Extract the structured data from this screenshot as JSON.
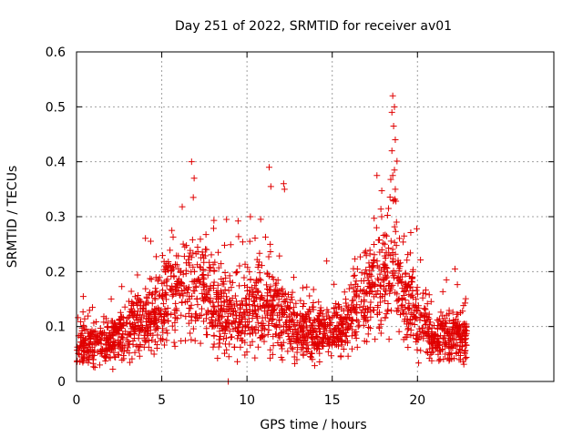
{
  "chart_data": {
    "type": "scatter",
    "title": "Day 251 of 2022, SRMTID for receiver av01",
    "xlabel": "GPS time / hours",
    "ylabel": "SRMTID / TECUs",
    "xlim": [
      0,
      28
    ],
    "ylim": [
      0,
      0.6
    ],
    "x_ticks": [
      0,
      5,
      10,
      15,
      20
    ],
    "y_ticks": [
      0,
      0.1,
      0.2,
      0.3,
      0.4,
      0.5,
      0.6
    ],
    "y_tick_labels": [
      "0",
      "0.1",
      "0.2",
      "0.3",
      "0.4",
      "0.5",
      "0.6"
    ],
    "grid": true,
    "marker": "+",
    "color": "#e00000",
    "series": [
      {
        "name": "av01",
        "seed": 251,
        "n_points": 2200,
        "x_range": [
          0,
          22.9
        ],
        "trend": [
          {
            "x": 0.0,
            "y": 0.075
          },
          {
            "x": 1.0,
            "y": 0.065
          },
          {
            "x": 2.0,
            "y": 0.07
          },
          {
            "x": 3.0,
            "y": 0.085
          },
          {
            "x": 4.0,
            "y": 0.11
          },
          {
            "x": 5.0,
            "y": 0.14
          },
          {
            "x": 6.0,
            "y": 0.17
          },
          {
            "x": 7.0,
            "y": 0.17
          },
          {
            "x": 8.0,
            "y": 0.15
          },
          {
            "x": 9.0,
            "y": 0.12
          },
          {
            "x": 10.0,
            "y": 0.12
          },
          {
            "x": 11.0,
            "y": 0.14
          },
          {
            "x": 12.0,
            "y": 0.12
          },
          {
            "x": 13.0,
            "y": 0.095
          },
          {
            "x": 14.0,
            "y": 0.085
          },
          {
            "x": 15.0,
            "y": 0.09
          },
          {
            "x": 16.0,
            "y": 0.11
          },
          {
            "x": 17.0,
            "y": 0.15
          },
          {
            "x": 18.0,
            "y": 0.19
          },
          {
            "x": 18.6,
            "y": 0.21
          },
          {
            "x": 19.0,
            "y": 0.16
          },
          {
            "x": 20.0,
            "y": 0.12
          },
          {
            "x": 21.0,
            "y": 0.075
          },
          {
            "x": 22.9,
            "y": 0.08
          }
        ],
        "highlights": [
          {
            "x": 6.75,
            "y": 0.4
          },
          {
            "x": 6.9,
            "y": 0.37
          },
          {
            "x": 6.85,
            "y": 0.335
          },
          {
            "x": 6.2,
            "y": 0.318
          },
          {
            "x": 11.3,
            "y": 0.39
          },
          {
            "x": 11.4,
            "y": 0.355
          },
          {
            "x": 12.15,
            "y": 0.36
          },
          {
            "x": 12.2,
            "y": 0.35
          },
          {
            "x": 10.2,
            "y": 0.3
          },
          {
            "x": 8.8,
            "y": 0.295
          },
          {
            "x": 18.55,
            "y": 0.52
          },
          {
            "x": 18.65,
            "y": 0.5
          },
          {
            "x": 18.5,
            "y": 0.49
          },
          {
            "x": 18.6,
            "y": 0.465
          },
          {
            "x": 18.7,
            "y": 0.44
          },
          {
            "x": 18.5,
            "y": 0.42
          },
          {
            "x": 18.65,
            "y": 0.385
          },
          {
            "x": 18.55,
            "y": 0.375
          },
          {
            "x": 18.7,
            "y": 0.35
          },
          {
            "x": 18.6,
            "y": 0.33
          },
          {
            "x": 18.3,
            "y": 0.315
          },
          {
            "x": 17.9,
            "y": 0.3
          },
          {
            "x": 17.6,
            "y": 0.28
          },
          {
            "x": 8.9,
            "y": 0.0
          },
          {
            "x": 22.2,
            "y": 0.205
          },
          {
            "x": 21.7,
            "y": 0.185
          }
        ]
      }
    ]
  }
}
